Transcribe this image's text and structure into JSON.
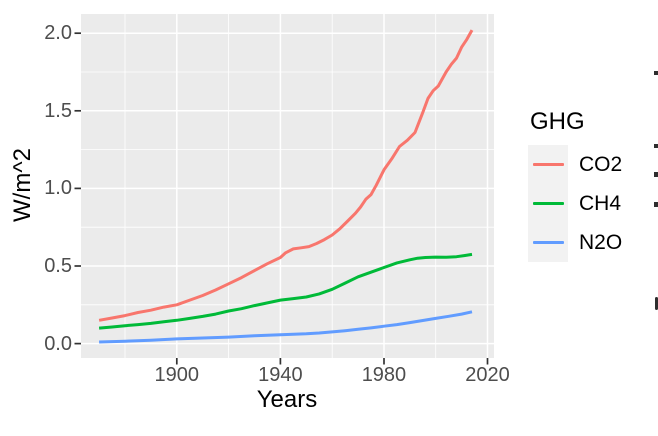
{
  "chart_data": {
    "type": "line",
    "title": "",
    "xlabel": "Years",
    "ylabel": "W/m^2",
    "legend_title": "GHG",
    "legend_position": "right",
    "panel_bg": "#EBEBEB",
    "grid_color": "#FFFFFF",
    "tick_color": "#333333",
    "tick_label_color": "#4D4D4D",
    "legend_key_bg": "#F2F2F2",
    "xlim": [
      1863,
      2022.5
    ],
    "ylim": [
      -0.093,
      2.124
    ],
    "x_ticks": [
      1900,
      1940,
      1980,
      2020
    ],
    "x_tick_labels": [
      "1900",
      "1940",
      "1980",
      "2020"
    ],
    "x_minor_ticks": [
      1880,
      1920,
      1960,
      2000
    ],
    "y_ticks": [
      0.0,
      0.5,
      1.0,
      1.5,
      2.0
    ],
    "y_tick_labels": [
      "0.0",
      "0.5",
      "1.0",
      "1.5",
      "2.0"
    ],
    "y_minor_ticks": [
      0.25,
      0.75,
      1.25,
      1.75
    ],
    "grid": true,
    "series": [
      {
        "name": "CO2",
        "color": "#F8766D",
        "x": [
          1870,
          1875,
          1880,
          1885,
          1890,
          1895,
          1900,
          1905,
          1910,
          1915,
          1920,
          1925,
          1930,
          1935,
          1940,
          1942,
          1945,
          1948,
          1951,
          1954,
          1957,
          1960,
          1963,
          1966,
          1969,
          1971,
          1973,
          1975,
          1977,
          1980,
          1983,
          1986,
          1989,
          1992,
          1995,
          1997,
          1999,
          2001,
          2004,
          2006,
          2008,
          2010,
          2012,
          2014
        ],
        "y": [
          0.15,
          0.165,
          0.18,
          0.2,
          0.215,
          0.235,
          0.25,
          0.28,
          0.31,
          0.345,
          0.385,
          0.425,
          0.47,
          0.515,
          0.555,
          0.585,
          0.61,
          0.617,
          0.625,
          0.645,
          0.67,
          0.7,
          0.74,
          0.79,
          0.84,
          0.88,
          0.93,
          0.96,
          1.02,
          1.12,
          1.19,
          1.27,
          1.31,
          1.36,
          1.49,
          1.58,
          1.63,
          1.66,
          1.75,
          1.8,
          1.84,
          1.91,
          1.96,
          2.02
        ]
      },
      {
        "name": "CH4",
        "color": "#00BA38",
        "x": [
          1870,
          1875,
          1880,
          1885,
          1890,
          1895,
          1900,
          1905,
          1910,
          1915,
          1920,
          1925,
          1930,
          1935,
          1940,
          1945,
          1950,
          1955,
          1960,
          1965,
          1970,
          1975,
          1980,
          1985,
          1990,
          1993,
          1996,
          2000,
          2004,
          2008,
          2011,
          2014
        ],
        "y": [
          0.1,
          0.107,
          0.115,
          0.122,
          0.13,
          0.14,
          0.15,
          0.162,
          0.175,
          0.19,
          0.21,
          0.225,
          0.245,
          0.262,
          0.28,
          0.29,
          0.3,
          0.32,
          0.35,
          0.39,
          0.43,
          0.46,
          0.49,
          0.52,
          0.54,
          0.55,
          0.555,
          0.557,
          0.556,
          0.56,
          0.567,
          0.575
        ]
      },
      {
        "name": "N2O",
        "color": "#619CFF",
        "x": [
          1870,
          1880,
          1890,
          1900,
          1910,
          1920,
          1930,
          1940,
          1950,
          1955,
          1960,
          1965,
          1970,
          1975,
          1980,
          1985,
          1990,
          1995,
          2000,
          2005,
          2010,
          2014
        ],
        "y": [
          0.01,
          0.015,
          0.022,
          0.03,
          0.036,
          0.042,
          0.05,
          0.057,
          0.063,
          0.068,
          0.075,
          0.083,
          0.092,
          0.101,
          0.112,
          0.122,
          0.135,
          0.149,
          0.162,
          0.176,
          0.19,
          0.205
        ]
      }
    ]
  }
}
